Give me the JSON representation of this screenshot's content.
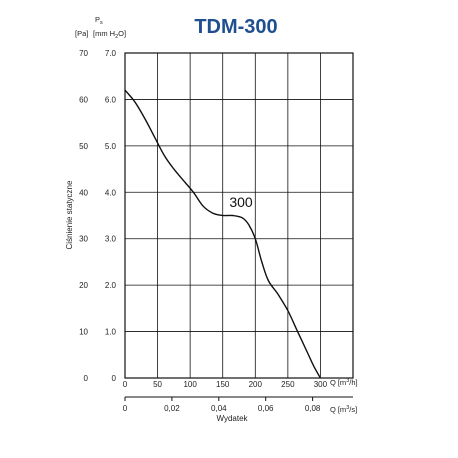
{
  "chart_data": {
    "type": "line",
    "title": "TDM-300",
    "ylabel": "Ciśnienie statyczne",
    "xlabel": "Wydatek",
    "y_left_unit": "[Pa]",
    "y_right_symbol": "P",
    "y_right_symbol_sub": "s",
    "y_right_unit": "[mm H",
    "y_right_unit_sub": "2",
    "y_right_unit_end": "O]",
    "x_top_unit_symbol": "Q",
    "x_top_unit": "[m",
    "x_top_unit_sup": "3",
    "x_top_unit_end": "/h]",
    "x_bottom_unit_symbol": "Q",
    "x_bottom_unit": "[m",
    "x_bottom_unit_sup": "3",
    "x_bottom_unit_end": "/s]",
    "ylim": [
      0,
      70
    ],
    "xlim": [
      0,
      350
    ],
    "y_left_ticks": [
      "0",
      "10",
      "20",
      "30",
      "40",
      "50",
      "60",
      "70"
    ],
    "y_right_ticks": [
      "0",
      "1.0",
      "2.0",
      "3.0",
      "4.0",
      "5.0",
      "6.0",
      "7.0"
    ],
    "x_top_ticks": [
      "0",
      "50",
      "100",
      "150",
      "200",
      "250",
      "300"
    ],
    "x_bottom_ticks": [
      "0",
      "0,02",
      "0,04",
      "0,06",
      "0,08"
    ],
    "x_bottom_tick_values": [
      0,
      0.02,
      0.04,
      0.06,
      0.08
    ],
    "grid": true,
    "series": [
      {
        "name": "300",
        "x": [
          0,
          15,
          30,
          45,
          60,
          75,
          90,
          105,
          120,
          135,
          150,
          165,
          180,
          190,
          200,
          210,
          220,
          235,
          250,
          265,
          280,
          290,
          300
        ],
        "y": [
          62,
          59.5,
          56,
          52,
          48,
          45,
          42.5,
          40,
          37,
          35.5,
          35,
          35,
          34.5,
          33,
          30,
          25,
          21,
          18,
          14.5,
          10,
          5.5,
          2.5,
          0
        ]
      }
    ]
  }
}
